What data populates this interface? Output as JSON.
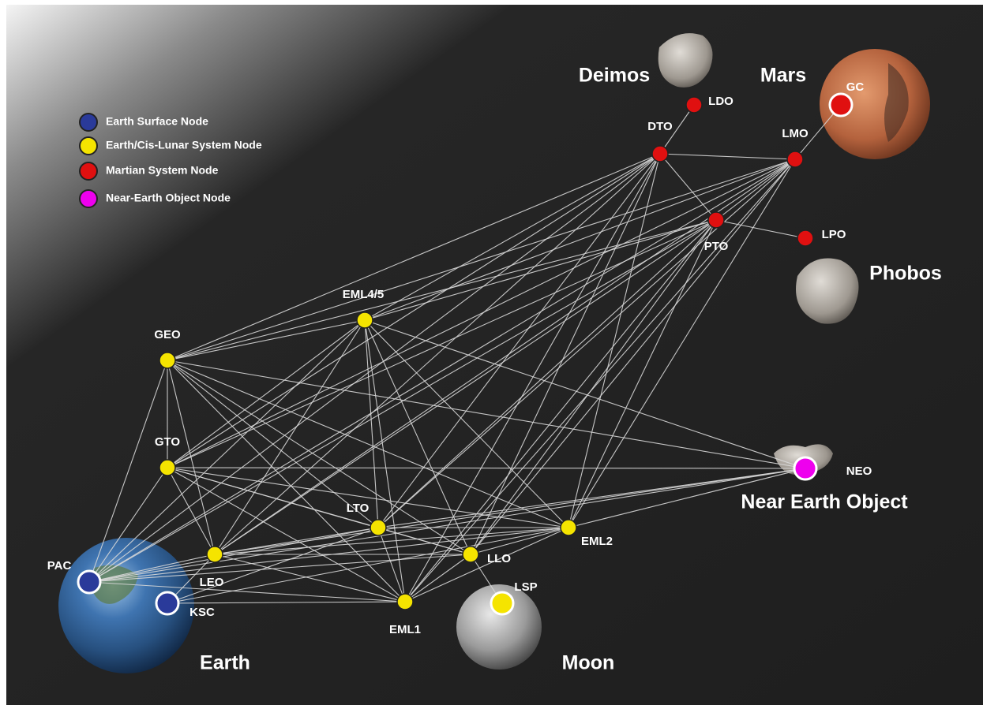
{
  "legend": [
    {
      "label": "Earth Surface Node"
    },
    {
      "label": "Earth/Cis-Lunar System Node"
    },
    {
      "label": "Martian System Node"
    },
    {
      "label": "Near-Earth Object Node"
    }
  ],
  "bodies": [
    {
      "label": "Earth"
    },
    {
      "label": "Moon"
    },
    {
      "label": "Deimos"
    },
    {
      "label": "Mars"
    },
    {
      "label": "Phobos"
    },
    {
      "label": "Near Earth Object"
    }
  ],
  "nodes": [
    {
      "label": "PAC"
    },
    {
      "label": "KSC"
    },
    {
      "label": "GEO"
    },
    {
      "label": "GTO"
    },
    {
      "label": "LEO"
    },
    {
      "label": "EML4/5"
    },
    {
      "label": "LTO"
    },
    {
      "label": "EML1"
    },
    {
      "label": "LLO"
    },
    {
      "label": "EML2"
    },
    {
      "label": "LSP"
    },
    {
      "label": "DTO"
    },
    {
      "label": "LDO"
    },
    {
      "label": "LMO"
    },
    {
      "label": "PTO"
    },
    {
      "label": "LPO"
    },
    {
      "label": "GC"
    },
    {
      "label": "NEO"
    }
  ]
}
